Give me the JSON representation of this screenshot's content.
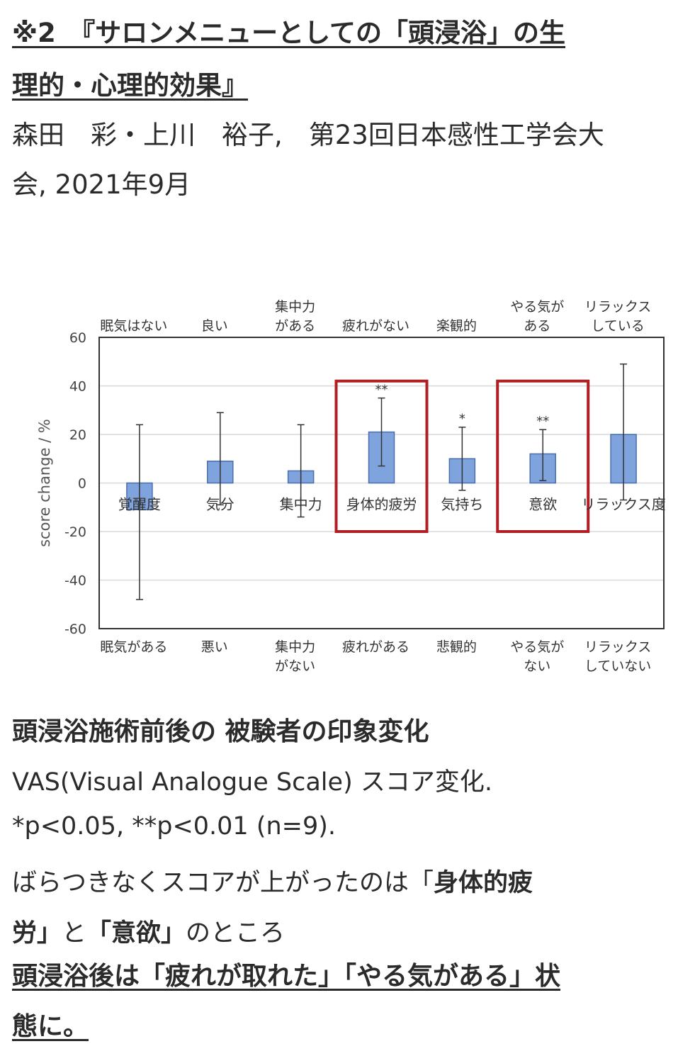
{
  "citation": {
    "title_line1": "※2　『サロンメニューとしての「頭浸浴」の生",
    "title_line2": "理的・心理的効果』",
    "authors_line1": "森田　彩・上川　裕子,　第23回日本感性工学会大",
    "authors_line2": "会, 2021年9月"
  },
  "chart_data": {
    "type": "bar",
    "ylabel": "score change / %",
    "ylim": [
      -60,
      60
    ],
    "yticks": [
      60,
      40,
      20,
      0,
      -20,
      -40,
      -60
    ],
    "grid": true,
    "categories": [
      "覚醒度",
      "気分",
      "集中力",
      "身体的疲労",
      "気持ち",
      "意欲",
      "リラックス度"
    ],
    "values": [
      -11,
      9,
      5,
      21,
      10,
      12,
      20
    ],
    "error_upper": [
      24,
      29,
      24,
      35,
      23,
      22,
      49
    ],
    "error_lower": [
      -48,
      -9,
      -14,
      7,
      -3,
      1,
      -7
    ],
    "significance": [
      "",
      "",
      "",
      "**",
      "*",
      "**",
      ""
    ],
    "top_labels": [
      [
        "眠気はない"
      ],
      [
        "良い"
      ],
      [
        "集中力",
        "がある"
      ],
      [
        "疲れがない"
      ],
      [
        "楽観的"
      ],
      [
        "やる気が",
        "ある"
      ],
      [
        "リラックス",
        "している"
      ]
    ],
    "bottom_labels": [
      [
        "眠気がある"
      ],
      [
        "悪い"
      ],
      [
        "集中力",
        "がない"
      ],
      [
        "疲れがある"
      ],
      [
        "悲観的"
      ],
      [
        "やる気が",
        "ない"
      ],
      [
        "リラックス",
        "していない"
      ]
    ],
    "highlighted": [
      "身体的疲労",
      "意欲"
    ],
    "colors": {
      "bar": "#7fa3dc",
      "bar_stroke": "#4a6fb0",
      "highlight": "#b01e24",
      "grid": "#d9d9d9"
    }
  },
  "caption": {
    "title": "頭浸浴施術前後の 被験者の印象変化",
    "line1": "VAS(Visual Analogue Scale) スコア変化.",
    "line2": "*p<0.05, **p<0.01 (n=9).",
    "line3_plain": "ばらつきなくスコアが上がったのは「",
    "line3_bold": "身体的疲",
    "line4_bold1": "労」",
    "line4_mid": "と",
    "line4_bold2": "「意欲」",
    "line4_end": "のところ",
    "conclusion_line1": "頭浸浴後は「疲れが取れた」「やる気がある」状",
    "conclusion_line2": "態に。"
  }
}
